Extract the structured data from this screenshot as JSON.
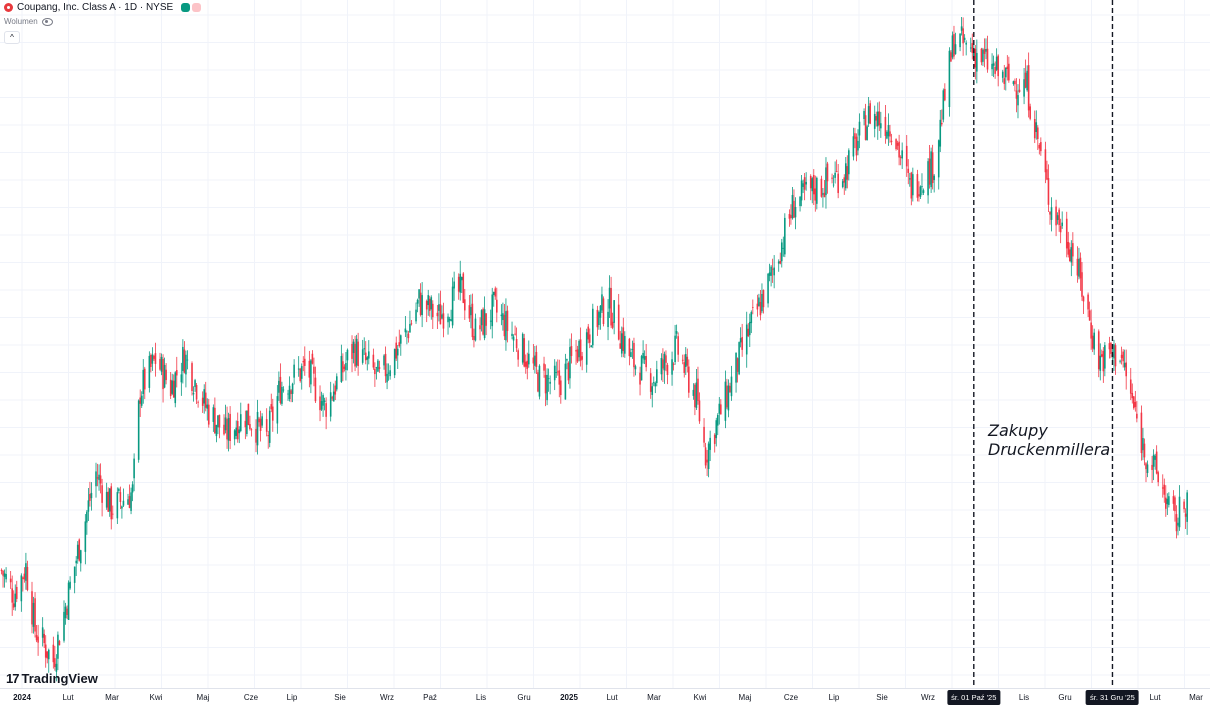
{
  "header": {
    "symbol_line": "Coupang, Inc. Class A · 1D · NYSE",
    "volume_label": "Wolumen",
    "collapse_glyph": "^"
  },
  "brand": {
    "name": "TradingView",
    "mark": "17"
  },
  "colors": {
    "up": "#089981",
    "down": "#f23645",
    "grid": "#f0f3fa",
    "text": "#131722"
  },
  "annotation": {
    "line1": "Zakupy",
    "line2": "Druckenmillera"
  },
  "time_axis": {
    "ticks": [
      {
        "label": "2024",
        "bold": true
      },
      {
        "label": "Lut"
      },
      {
        "label": "Mar"
      },
      {
        "label": "Kwi"
      },
      {
        "label": "Maj"
      },
      {
        "label": "Cze"
      },
      {
        "label": "Lip"
      },
      {
        "label": "Sie"
      },
      {
        "label": "Wrz"
      },
      {
        "label": "Paź"
      },
      {
        "label": "Lis"
      },
      {
        "label": "Gru"
      },
      {
        "label": "2025",
        "bold": true
      },
      {
        "label": "Lut"
      },
      {
        "label": "Mar"
      },
      {
        "label": "Kwi"
      },
      {
        "label": "Maj"
      },
      {
        "label": "Cze"
      },
      {
        "label": "Lip"
      },
      {
        "label": "Sie"
      },
      {
        "label": "Wrz"
      },
      {
        "label": "Lis"
      },
      {
        "label": "Gru"
      },
      {
        "label": "Lut"
      },
      {
        "label": "Mar"
      }
    ],
    "markers": [
      {
        "label": "śr. 01 Paź '25"
      },
      {
        "label": "śr. 31 Gru '25"
      }
    ]
  },
  "chart_data": {
    "type": "candlestick",
    "title": "Coupang, Inc. Class A · 1D · NYSE",
    "x_range": [
      "2024-01-01",
      "2026-03-05"
    ],
    "y_trend": [
      [
        "2024-01-02",
        16.0
      ],
      [
        "2024-01-10",
        15.4
      ],
      [
        "2024-01-18",
        16.1
      ],
      [
        "2024-01-24",
        14.5
      ],
      [
        "2024-02-05",
        13.7
      ],
      [
        "2024-02-20",
        16.3
      ],
      [
        "2024-03-04",
        18.5
      ],
      [
        "2024-03-14",
        17.6
      ],
      [
        "2024-03-28",
        18.0
      ],
      [
        "2024-04-02",
        20.6
      ],
      [
        "2024-04-12",
        21.4
      ],
      [
        "2024-04-22",
        20.7
      ],
      [
        "2024-05-01",
        21.5
      ],
      [
        "2024-05-15",
        20.2
      ],
      [
        "2024-05-28",
        19.5
      ],
      [
        "2024-06-10",
        20.0
      ],
      [
        "2024-06-24",
        19.4
      ],
      [
        "2024-07-03",
        20.7
      ],
      [
        "2024-07-20",
        21.2
      ],
      [
        "2024-08-01",
        20.2
      ],
      [
        "2024-08-20",
        21.7
      ],
      [
        "2024-09-06",
        20.9
      ],
      [
        "2024-09-24",
        22.1
      ],
      [
        "2024-10-02",
        22.9
      ],
      [
        "2024-10-15",
        22.5
      ],
      [
        "2024-10-30",
        23.2
      ],
      [
        "2024-11-08",
        22.1
      ],
      [
        "2024-11-20",
        22.7
      ],
      [
        "2024-12-05",
        21.9
      ],
      [
        "2024-12-20",
        20.9
      ],
      [
        "2025-01-02",
        20.8
      ],
      [
        "2025-01-15",
        21.7
      ],
      [
        "2025-02-03",
        22.9
      ],
      [
        "2025-02-18",
        21.4
      ],
      [
        "2025-03-05",
        20.9
      ],
      [
        "2025-03-20",
        21.7
      ],
      [
        "2025-04-02",
        20.4
      ],
      [
        "2025-04-08",
        19.0
      ],
      [
        "2025-04-22",
        20.5
      ],
      [
        "2025-05-05",
        22.0
      ],
      [
        "2025-05-20",
        23.4
      ],
      [
        "2025-06-05",
        25.4
      ],
      [
        "2025-06-20",
        25.8
      ],
      [
        "2025-07-08",
        26.2
      ],
      [
        "2025-07-25",
        27.7
      ],
      [
        "2025-08-08",
        27.4
      ],
      [
        "2025-08-20",
        25.8
      ],
      [
        "2025-09-05",
        26.4
      ],
      [
        "2025-09-18",
        29.6
      ],
      [
        "2025-10-01",
        29.3
      ],
      [
        "2025-10-20",
        28.6
      ],
      [
        "2025-11-05",
        28.4
      ],
      [
        "2025-11-20",
        25.4
      ],
      [
        "2025-12-05",
        24.2
      ],
      [
        "2025-12-22",
        21.4
      ],
      [
        "2026-01-05",
        21.6
      ],
      [
        "2026-01-20",
        19.2
      ],
      [
        "2026-02-01",
        18.2
      ],
      [
        "2026-02-10",
        17.2
      ],
      [
        "2026-02-18",
        17.9
      ]
    ],
    "ylim": [
      13.0,
      30.6
    ],
    "vertical_lines": [
      "2025-10-01",
      "2025-12-31"
    ],
    "grid": true
  }
}
